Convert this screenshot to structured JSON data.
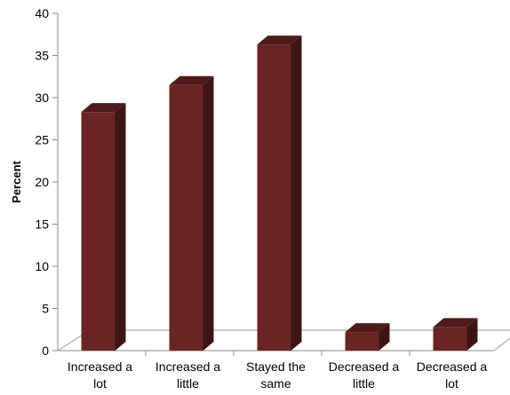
{
  "chart_data": {
    "type": "bar",
    "categories": [
      [
        "Increased a",
        "lot"
      ],
      [
        "Increased a",
        "little"
      ],
      [
        "Stayed the",
        "same"
      ],
      [
        "Decreased a",
        "little"
      ],
      [
        "Decreased a",
        "lot"
      ]
    ],
    "values": [
      28.3,
      31.5,
      36.3,
      2.2,
      2.8
    ],
    "title": "",
    "xlabel": "",
    "ylabel": "Percent",
    "ylim": [
      0,
      40
    ],
    "yticks": [
      "0",
      "5",
      "10",
      "15",
      "20",
      "25",
      "30",
      "35",
      "40"
    ],
    "grid": false,
    "legend": "none",
    "style": "3d-column",
    "colors": {
      "bar_front": "#6b2525",
      "bar_side": "#3e1414",
      "bar_top": "#4f1b1b",
      "axis": "#888888",
      "floor": "#9a9a9a"
    }
  }
}
